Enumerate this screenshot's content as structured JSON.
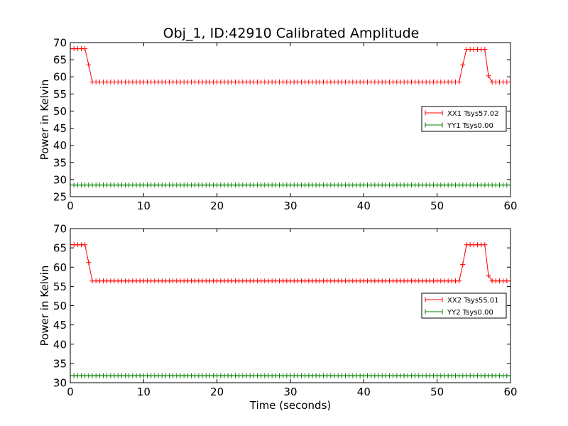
{
  "figure": {
    "title": "Obj_1, ID:42910 Calibrated Amplitude"
  },
  "chart_data": [
    {
      "type": "line",
      "title": "Obj_1, ID:42910 Calibrated Amplitude",
      "xlabel": "",
      "ylabel": "Power in Kelvin",
      "xlim": [
        0,
        60
      ],
      "ylim": [
        25,
        70
      ],
      "xticks": [
        0,
        10,
        20,
        30,
        40,
        50,
        60
      ],
      "yticks": [
        25,
        30,
        35,
        40,
        45,
        50,
        55,
        60,
        65,
        70
      ],
      "grid": false,
      "legend_position": "center-right",
      "marker": "+",
      "sample_interval_s": 0.5,
      "series": [
        {
          "name": "XX1 Tsys57.02",
          "color": "#ff0000",
          "segments": [
            {
              "from": 0,
              "to": 2.5,
              "value": 68.2
            },
            {
              "from": 2.5,
              "to": 3.0,
              "value": 63.5
            },
            {
              "from": 3.0,
              "to": 53.5,
              "value": 58.5
            },
            {
              "from": 53.5,
              "to": 54.0,
              "value": 63.5
            },
            {
              "from": 54.0,
              "to": 57.0,
              "value": 68.0
            },
            {
              "from": 57.0,
              "to": 57.5,
              "value": 60.3
            },
            {
              "from": 57.5,
              "to": 60,
              "value": 58.5
            }
          ]
        },
        {
          "name": "YY1 Tsys0.00",
          "color": "#008000",
          "segments": [
            {
              "from": 0,
              "to": 60,
              "value": 28.4
            }
          ]
        }
      ]
    },
    {
      "type": "line",
      "title": "",
      "xlabel": "Time (seconds)",
      "ylabel": "Power in Kelvin",
      "xlim": [
        0,
        60
      ],
      "ylim": [
        30,
        70
      ],
      "xticks": [
        0,
        10,
        20,
        30,
        40,
        50,
        60
      ],
      "yticks": [
        30,
        35,
        40,
        45,
        50,
        55,
        60,
        65,
        70
      ],
      "grid": false,
      "legend_position": "center-right",
      "marker": "+",
      "sample_interval_s": 0.5,
      "series": [
        {
          "name": "XX2 Tsys55.01",
          "color": "#ff0000",
          "segments": [
            {
              "from": 0,
              "to": 2.5,
              "value": 65.8
            },
            {
              "from": 2.5,
              "to": 3.0,
              "value": 61.2
            },
            {
              "from": 3.0,
              "to": 53.5,
              "value": 56.4
            },
            {
              "from": 53.5,
              "to": 54.0,
              "value": 60.7
            },
            {
              "from": 54.0,
              "to": 57.0,
              "value": 65.8
            },
            {
              "from": 57.0,
              "to": 57.5,
              "value": 57.8
            },
            {
              "from": 57.5,
              "to": 60,
              "value": 56.4
            }
          ]
        },
        {
          "name": "YY2 Tsys0.00",
          "color": "#008000",
          "segments": [
            {
              "from": 0,
              "to": 60,
              "value": 31.8
            }
          ]
        }
      ]
    }
  ]
}
